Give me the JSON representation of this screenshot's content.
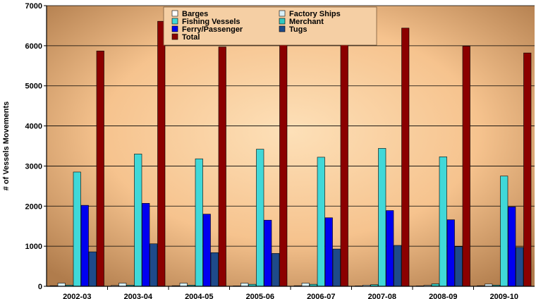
{
  "chart_data": {
    "type": "bar",
    "ylabel": "# of Vessels Movements",
    "xlabel": "",
    "ylim": [
      0,
      7000
    ],
    "yticks": [
      "0",
      "1000",
      "2000",
      "3000",
      "4000",
      "5000",
      "6000",
      "7000"
    ],
    "grid": true,
    "legend_position": "top-center",
    "categories": [
      "2002-03",
      "2003-04",
      "2004-05",
      "2005-06",
      "2006-07",
      "2007-08",
      "2008-09",
      "2009-10"
    ],
    "series": [
      {
        "name": "Barges",
        "color": "#ffffff",
        "values": [
          15,
          20,
          15,
          10,
          15,
          10,
          10,
          15
        ]
      },
      {
        "name": "Factory Ships",
        "color": "#d8f0f8",
        "values": [
          80,
          80,
          80,
          80,
          80,
          30,
          25,
          55
        ]
      },
      {
        "name": "Merchant",
        "color": "#30c8c0",
        "values": [
          30,
          30,
          30,
          50,
          50,
          40,
          60,
          30
        ]
      },
      {
        "name": "Fishing Vessels",
        "color": "#40d8d8",
        "values": [
          2850,
          3300,
          3180,
          3420,
          3220,
          3440,
          3230,
          2750
        ]
      },
      {
        "name": "Ferry/Passenger",
        "color": "#0000f0",
        "values": [
          2020,
          2070,
          1800,
          1650,
          1710,
          1890,
          1660,
          1980
        ]
      },
      {
        "name": "Tugs",
        "color": "#1e4a8a",
        "values": [
          860,
          1060,
          840,
          820,
          930,
          1020,
          990,
          970
        ]
      },
      {
        "name": "Total",
        "color": "#8b0000",
        "values": [
          5870,
          6610,
          5970,
          6050,
          6030,
          6440,
          5990,
          5820
        ]
      }
    ],
    "legend_items": [
      "Barges",
      "Factory Ships",
      "Fishing Vessels",
      "Merchant",
      "Ferry/Passenger",
      "Tugs",
      "Total"
    ]
  }
}
